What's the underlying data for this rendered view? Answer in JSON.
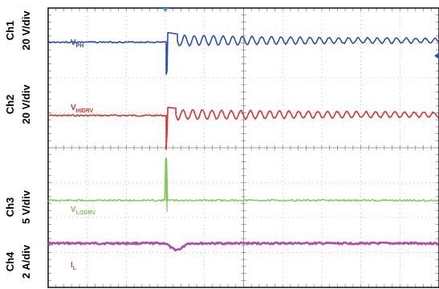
{
  "chart_data": {
    "type": "line",
    "title": "",
    "grid": true,
    "divisions": {
      "horizontal": 10,
      "vertical": 8
    },
    "channels": [
      {
        "id": "ch1",
        "name": "Ch1",
        "scale": "20 V/div",
        "trace_label": "V",
        "trace_sub": "PH",
        "color": "#2b4fae",
        "center_div": 1.0
      },
      {
        "id": "ch2",
        "name": "Ch2",
        "scale": "20 V/div",
        "trace_label": "V",
        "trace_sub": "HIDRV",
        "color": "#e03030",
        "center_div": 3.1
      },
      {
        "id": "ch3",
        "name": "Ch3",
        "scale": "5 V/div",
        "trace_label": "V",
        "trace_sub": "LODRV",
        "color": "#7ec850",
        "center_div": 5.6
      },
      {
        "id": "ch4",
        "name": "Ch4",
        "scale": "2 A/div",
        "trace_label": "I",
        "trace_sub": "L",
        "color": "#b04cb0",
        "center_div": 6.9
      }
    ]
  }
}
